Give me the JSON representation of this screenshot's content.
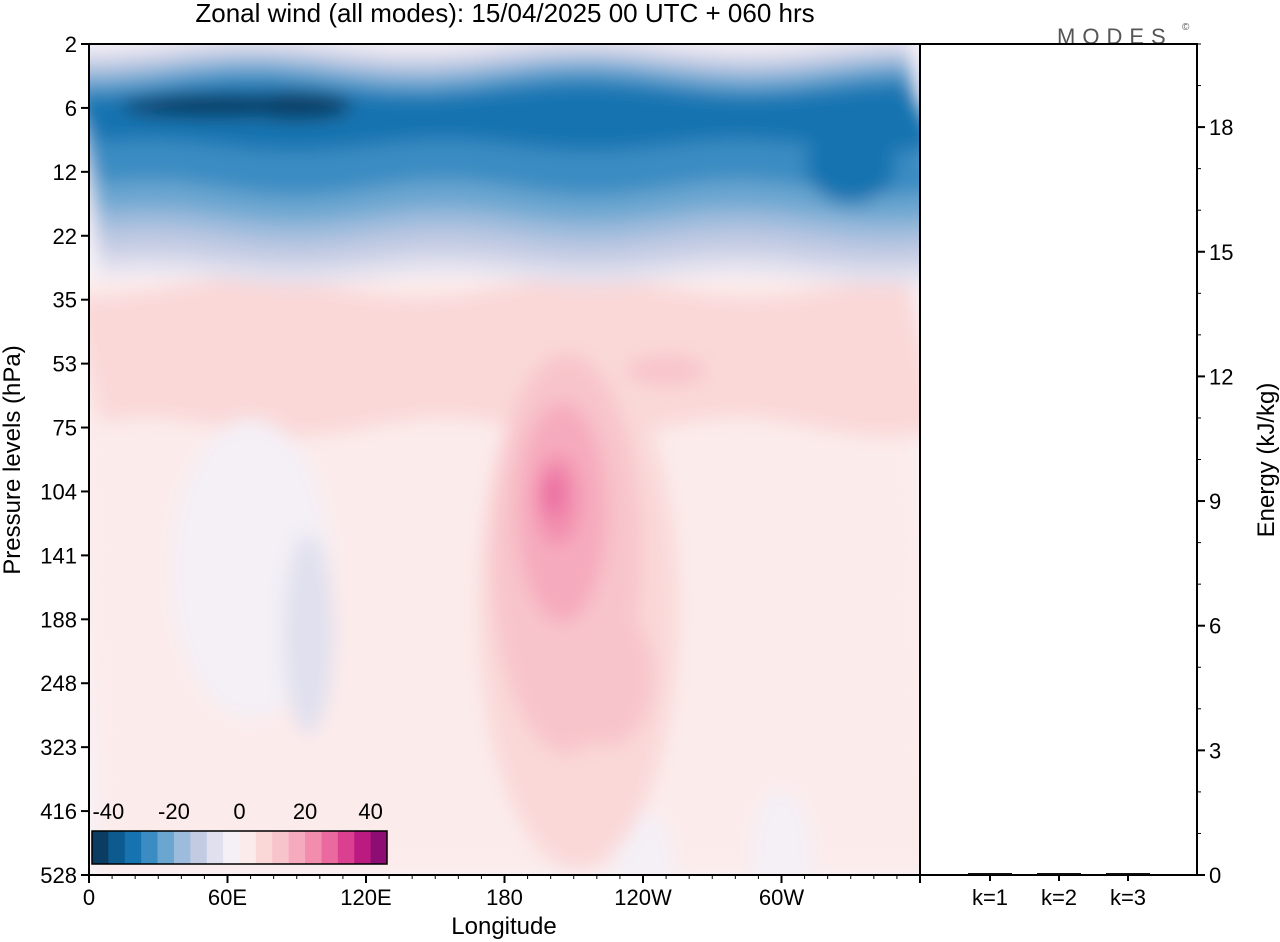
{
  "title": "Zonal wind (all modes):  15/04/2025  00 UTC  + 060 hrs",
  "logo": {
    "text": "MODES",
    "mark": "©"
  },
  "colors": {
    "negative": [
      "#0b3d63",
      "#0d5a8f",
      "#1673b0",
      "#3a8cc2",
      "#6aa6d0",
      "#9dbbdc",
      "#c3cbe3",
      "#e0e0ee",
      "#f4f0f6"
    ],
    "positive": [
      "#fcebeb",
      "#fad8d8",
      "#f8c4cb",
      "#f6aabd",
      "#f28dae",
      "#ea6aa0",
      "#db3f90",
      "#bb1b80",
      "#8e0d74",
      "#5a0a5e"
    ]
  },
  "chart_data": [
    {
      "type": "heatmap",
      "title": "Zonal wind (all modes):  15/04/2025  00 UTC  + 060 hrs",
      "xlabel": "Longitude",
      "ylabel": "Pressure levels (hPa)",
      "x_ticks": [
        "0",
        "60E",
        "120E",
        "180",
        "120W",
        "60W"
      ],
      "x_tick_degrees": [
        0,
        60,
        120,
        180,
        240,
        300
      ],
      "xlim": [
        0,
        360
      ],
      "y_ticks": [
        "2",
        "6",
        "12",
        "22",
        "35",
        "53",
        "75",
        "104",
        "141",
        "188",
        "248",
        "323",
        "416",
        "528"
      ],
      "y_levels_hPa": [
        2,
        6,
        12,
        22,
        35,
        53,
        75,
        104,
        141,
        188,
        248,
        323,
        416,
        528
      ],
      "colorbar": {
        "labels": [
          "-40",
          "-20",
          "0",
          "20",
          "40"
        ],
        "values": [
          -40,
          -20,
          0,
          20,
          40
        ],
        "range": [
          -45,
          45
        ],
        "step": 5
      },
      "features": [
        {
          "name": "stratospheric easterly jet",
          "lon": [
            0,
            360
          ],
          "p_hPa": [
            3,
            25
          ],
          "min_value": -42
        },
        {
          "name": "westerly jet core",
          "lon_center": 206,
          "p_center_hPa": 110,
          "max_value": 25
        },
        {
          "name": "weak easterlies",
          "lon_center": 75,
          "p_center_hPa": 140,
          "min_value": -6
        }
      ]
    },
    {
      "type": "bar",
      "categories": [
        "k=1",
        "k=2",
        "k=3"
      ],
      "values": [
        0.02,
        0.01,
        0.0
      ],
      "ylabel": "Energy (kJ/kg)",
      "y_ticks": [
        "0",
        "3",
        "6",
        "9",
        "12",
        "15",
        "18"
      ],
      "ylim": [
        0,
        20
      ]
    }
  ]
}
